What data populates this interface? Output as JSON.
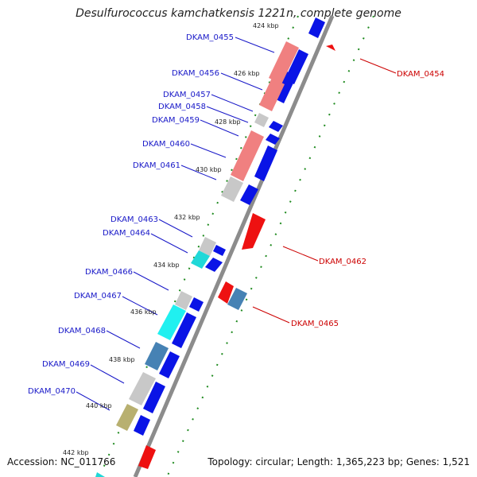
{
  "header": {
    "title": "Desulfurococcus kamchatkensis 1221n, complete genome"
  },
  "footer": {
    "accession": "Accession: NC_011766",
    "topology": "Topology: circular; Length: 1,365,223 bp; Genes: 1,521"
  },
  "colors": {
    "backbone": "#8c8c8c",
    "forward_arrow": "#0a14e6",
    "reverse_arrow": "#ee1111",
    "forward_label": "#1818c8",
    "reverse_label": "#cc0000",
    "tick": "#1e8a1e"
  },
  "map": {
    "ruler_labels": [
      "424 kbp",
      "426 kbp",
      "428 kbp",
      "430 kbp",
      "432 kbp",
      "434 kbp",
      "436 kbp",
      "438 kbp",
      "440 kbp",
      "442 kbp"
    ],
    "forward_genes": [
      "DKAM_0455",
      "DKAM_0456",
      "DKAM_0457",
      "DKAM_0458",
      "DKAM_0459",
      "DKAM_0460",
      "DKAM_0461",
      "DKAM_0463",
      "DKAM_0464",
      "DKAM_0466",
      "DKAM_0467",
      "DKAM_0468",
      "DKAM_0469",
      "DKAM_0470"
    ],
    "reverse_genes": [
      "DKAM_0454",
      "DKAM_0462",
      "DKAM_0465"
    ]
  }
}
